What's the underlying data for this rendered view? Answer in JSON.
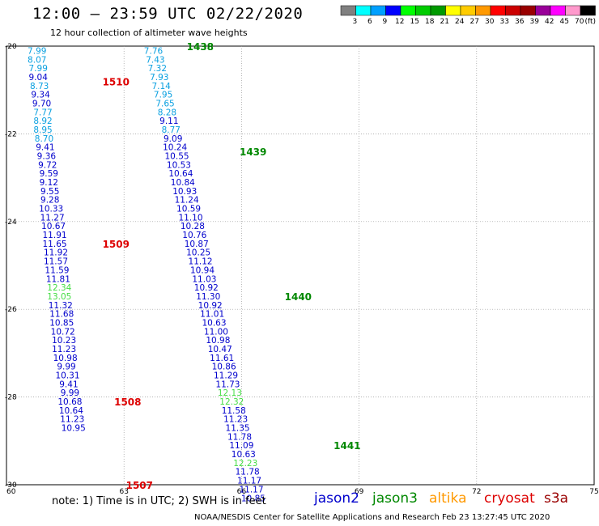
{
  "header": {
    "title": "12:00 – 23:59 UTC 02/22/2020",
    "subtitle": "12 hour collection of altimeter wave heights"
  },
  "colorbar": {
    "colors": [
      "#808080",
      "#00ffff",
      "#00a0ff",
      "#0000ff",
      "#00ff00",
      "#00cc00",
      "#009900",
      "#ffff00",
      "#ffcc00",
      "#ff9900",
      "#ff0000",
      "#cc0000",
      "#990000",
      "#990099",
      "#ff00ff",
      "#ff99cc",
      "#000000"
    ],
    "labels": [
      "3",
      "6",
      "9",
      "12",
      "15",
      "18",
      "21",
      "24",
      "27",
      "30",
      "33",
      "36",
      "39",
      "42",
      "45",
      "70",
      "(ft)"
    ]
  },
  "footer": {
    "note": "note:  1) Time is in UTC;  2) SWH is in feet",
    "credit": "NOAA/NESDIS Center for Satellite Applications and Research     Feb 23 13:27:45 UTC 2020"
  },
  "satellites": [
    {
      "name": "jason2",
      "color": "#0000cc"
    },
    {
      "name": "jason3",
      "color": "#008800"
    },
    {
      "name": "altika",
      "color": "#ff9900"
    },
    {
      "name": "cryosat",
      "color": "#dd0000"
    },
    {
      "name": "s3a",
      "color": "#990000"
    }
  ],
  "chart_data": {
    "type": "scatter",
    "x_ticks": [
      "60",
      "63",
      "66",
      "69",
      "72",
      "75"
    ],
    "y_ticks": [
      "-20",
      "-22",
      "-24",
      "-26",
      "-28",
      "-30"
    ],
    "xlim": [
      60,
      75
    ],
    "ylim": [
      -30,
      -20
    ],
    "grid": true,
    "tracks": [
      {
        "name": "1510 / 1509 / 1508 / 1507",
        "passes": [
          {
            "id": "1510",
            "lon": 62.45,
            "lat": -20.8,
            "color": "#dd0000"
          },
          {
            "id": "1509",
            "lon": 62.45,
            "lat": -24.5,
            "color": "#dd0000"
          },
          {
            "id": "1508",
            "lon": 62.75,
            "lat": -28.1,
            "color": "#dd0000"
          },
          {
            "id": "1507",
            "lon": 63.05,
            "lat": -30.0,
            "color": "#dd0000"
          }
        ],
        "points": [
          {
            "lon": 60.78,
            "lat": -20.1,
            "v": "7.99"
          },
          {
            "lon": 60.78,
            "lat": -20.3,
            "v": "8.07"
          },
          {
            "lon": 60.81,
            "lat": -20.5,
            "v": "7.99"
          },
          {
            "lon": 60.81,
            "lat": -20.7,
            "v": "9.04"
          },
          {
            "lon": 60.84,
            "lat": -20.9,
            "v": "8.73"
          },
          {
            "lon": 60.87,
            "lat": -21.1,
            "v": "9.34"
          },
          {
            "lon": 60.9,
            "lat": -21.3,
            "v": "9.70"
          },
          {
            "lon": 60.93,
            "lat": -21.5,
            "v": "7.77"
          },
          {
            "lon": 60.93,
            "lat": -21.7,
            "v": "8.92"
          },
          {
            "lon": 60.93,
            "lat": -21.9,
            "v": "8.95"
          },
          {
            "lon": 60.96,
            "lat": -22.1,
            "v": "8.70"
          },
          {
            "lon": 60.99,
            "lat": -22.3,
            "v": "9.41"
          },
          {
            "lon": 61.02,
            "lat": -22.5,
            "v": "9.36"
          },
          {
            "lon": 61.05,
            "lat": -22.7,
            "v": "9.72"
          },
          {
            "lon": 61.08,
            "lat": -22.9,
            "v": "9.59"
          },
          {
            "lon": 61.08,
            "lat": -23.1,
            "v": "9.12"
          },
          {
            "lon": 61.11,
            "lat": -23.3,
            "v": "9.55"
          },
          {
            "lon": 61.11,
            "lat": -23.5,
            "v": "9.28"
          },
          {
            "lon": 61.14,
            "lat": -23.7,
            "v": "10.33"
          },
          {
            "lon": 61.17,
            "lat": -23.9,
            "v": "11.27"
          },
          {
            "lon": 61.2,
            "lat": -24.1,
            "v": "10.67"
          },
          {
            "lon": 61.23,
            "lat": -24.3,
            "v": "11.91"
          },
          {
            "lon": 61.23,
            "lat": -24.5,
            "v": "11.65"
          },
          {
            "lon": 61.26,
            "lat": -24.7,
            "v": "11.92"
          },
          {
            "lon": 61.26,
            "lat": -24.9,
            "v": "11.57"
          },
          {
            "lon": 61.29,
            "lat": -25.1,
            "v": "11.59"
          },
          {
            "lon": 61.32,
            "lat": -25.3,
            "v": "11.81"
          },
          {
            "lon": 61.35,
            "lat": -25.5,
            "v": "12.34"
          },
          {
            "lon": 61.35,
            "lat": -25.7,
            "v": "13.05"
          },
          {
            "lon": 61.38,
            "lat": -25.9,
            "v": "11.32"
          },
          {
            "lon": 61.41,
            "lat": -26.1,
            "v": "11.68"
          },
          {
            "lon": 61.41,
            "lat": -26.3,
            "v": "10.85"
          },
          {
            "lon": 61.44,
            "lat": -26.5,
            "v": "10.72"
          },
          {
            "lon": 61.47,
            "lat": -26.7,
            "v": "10.23"
          },
          {
            "lon": 61.47,
            "lat": -26.9,
            "v": "11.23"
          },
          {
            "lon": 61.5,
            "lat": -27.1,
            "v": "10.98"
          },
          {
            "lon": 61.53,
            "lat": -27.3,
            "v": "9.99"
          },
          {
            "lon": 61.56,
            "lat": -27.5,
            "v": "10.31"
          },
          {
            "lon": 61.59,
            "lat": -27.7,
            "v": "9.41"
          },
          {
            "lon": 61.62,
            "lat": -27.9,
            "v": "9.99"
          },
          {
            "lon": 61.62,
            "lat": -28.1,
            "v": "10.68"
          },
          {
            "lon": 61.65,
            "lat": -28.3,
            "v": "10.64"
          },
          {
            "lon": 61.68,
            "lat": -28.5,
            "v": "11.23"
          },
          {
            "lon": 61.71,
            "lat": -28.7,
            "v": "10.95"
          }
        ]
      },
      {
        "name": "1438 / 1439 / 1440 / 1441",
        "passes": [
          {
            "id": "1438",
            "lon": 64.6,
            "lat": -20.0,
            "color": "#008800"
          },
          {
            "id": "1439",
            "lon": 65.95,
            "lat": -22.4,
            "color": "#008800"
          },
          {
            "id": "1440",
            "lon": 67.1,
            "lat": -25.7,
            "color": "#008800"
          },
          {
            "id": "1441",
            "lon": 68.35,
            "lat": -29.1,
            "color": "#008800"
          }
        ],
        "points": [
          {
            "lon": 63.75,
            "lat": -20.1,
            "v": "7.76"
          },
          {
            "lon": 63.8,
            "lat": -20.3,
            "v": "7.43"
          },
          {
            "lon": 63.85,
            "lat": -20.5,
            "v": "7.32"
          },
          {
            "lon": 63.9,
            "lat": -20.7,
            "v": "7.93"
          },
          {
            "lon": 63.95,
            "lat": -20.9,
            "v": "7.14"
          },
          {
            "lon": 64.0,
            "lat": -21.1,
            "v": "7.95"
          },
          {
            "lon": 64.05,
            "lat": -21.3,
            "v": "7.65"
          },
          {
            "lon": 64.1,
            "lat": -21.5,
            "v": "8.28"
          },
          {
            "lon": 64.15,
            "lat": -21.7,
            "v": "9.11"
          },
          {
            "lon": 64.2,
            "lat": -21.9,
            "v": "8.77"
          },
          {
            "lon": 64.25,
            "lat": -22.1,
            "v": "9.09"
          },
          {
            "lon": 64.3,
            "lat": -22.3,
            "v": "10.24"
          },
          {
            "lon": 64.35,
            "lat": -22.5,
            "v": "10.55"
          },
          {
            "lon": 64.4,
            "lat": -22.7,
            "v": "10.53"
          },
          {
            "lon": 64.45,
            "lat": -22.9,
            "v": "10.64"
          },
          {
            "lon": 64.5,
            "lat": -23.1,
            "v": "10.84"
          },
          {
            "lon": 64.55,
            "lat": -23.3,
            "v": "10.93"
          },
          {
            "lon": 64.6,
            "lat": -23.5,
            "v": "11.24"
          },
          {
            "lon": 64.65,
            "lat": -23.7,
            "v": "10.59"
          },
          {
            "lon": 64.7,
            "lat": -23.9,
            "v": "11.10"
          },
          {
            "lon": 64.75,
            "lat": -24.1,
            "v": "10.28"
          },
          {
            "lon": 64.8,
            "lat": -24.3,
            "v": "10.76"
          },
          {
            "lon": 64.85,
            "lat": -24.5,
            "v": "10.87"
          },
          {
            "lon": 64.9,
            "lat": -24.7,
            "v": "10.25"
          },
          {
            "lon": 64.95,
            "lat": -24.9,
            "v": "11.12"
          },
          {
            "lon": 65.0,
            "lat": -25.1,
            "v": "10.94"
          },
          {
            "lon": 65.05,
            "lat": -25.3,
            "v": "11.03"
          },
          {
            "lon": 65.1,
            "lat": -25.5,
            "v": "10.92"
          },
          {
            "lon": 65.15,
            "lat": -25.7,
            "v": "11.30"
          },
          {
            "lon": 65.2,
            "lat": -25.9,
            "v": "10.92"
          },
          {
            "lon": 65.25,
            "lat": -26.1,
            "v": "11.01"
          },
          {
            "lon": 65.3,
            "lat": -26.3,
            "v": "10.63"
          },
          {
            "lon": 65.35,
            "lat": -26.5,
            "v": "11.00"
          },
          {
            "lon": 65.4,
            "lat": -26.7,
            "v": "10.98"
          },
          {
            "lon": 65.45,
            "lat": -26.9,
            "v": "10.47"
          },
          {
            "lon": 65.5,
            "lat": -27.1,
            "v": "11.61"
          },
          {
            "lon": 65.55,
            "lat": -27.3,
            "v": "10.86"
          },
          {
            "lon": 65.6,
            "lat": -27.5,
            "v": "11.29"
          },
          {
            "lon": 65.65,
            "lat": -27.7,
            "v": "11.73"
          },
          {
            "lon": 65.7,
            "lat": -27.9,
            "v": "12.13"
          },
          {
            "lon": 65.75,
            "lat": -28.1,
            "v": "12.32"
          },
          {
            "lon": 65.8,
            "lat": -28.3,
            "v": "11.58"
          },
          {
            "lon": 65.85,
            "lat": -28.5,
            "v": "11.23"
          },
          {
            "lon": 65.9,
            "lat": -28.7,
            "v": "11.35"
          },
          {
            "lon": 65.95,
            "lat": -28.9,
            "v": "11.78"
          },
          {
            "lon": 66.0,
            "lat": -29.1,
            "v": "11.09"
          },
          {
            "lon": 66.05,
            "lat": -29.3,
            "v": "10.63"
          },
          {
            "lon": 66.1,
            "lat": -29.5,
            "v": "12.23"
          },
          {
            "lon": 66.15,
            "lat": -29.7,
            "v": "11.78"
          },
          {
            "lon": 66.2,
            "lat": -29.9,
            "v": "11.17"
          },
          {
            "lon": 66.25,
            "lat": -30.1,
            "v": "11.17"
          },
          {
            "lon": 66.3,
            "lat": -30.3,
            "v": "10.85"
          }
        ]
      }
    ]
  }
}
